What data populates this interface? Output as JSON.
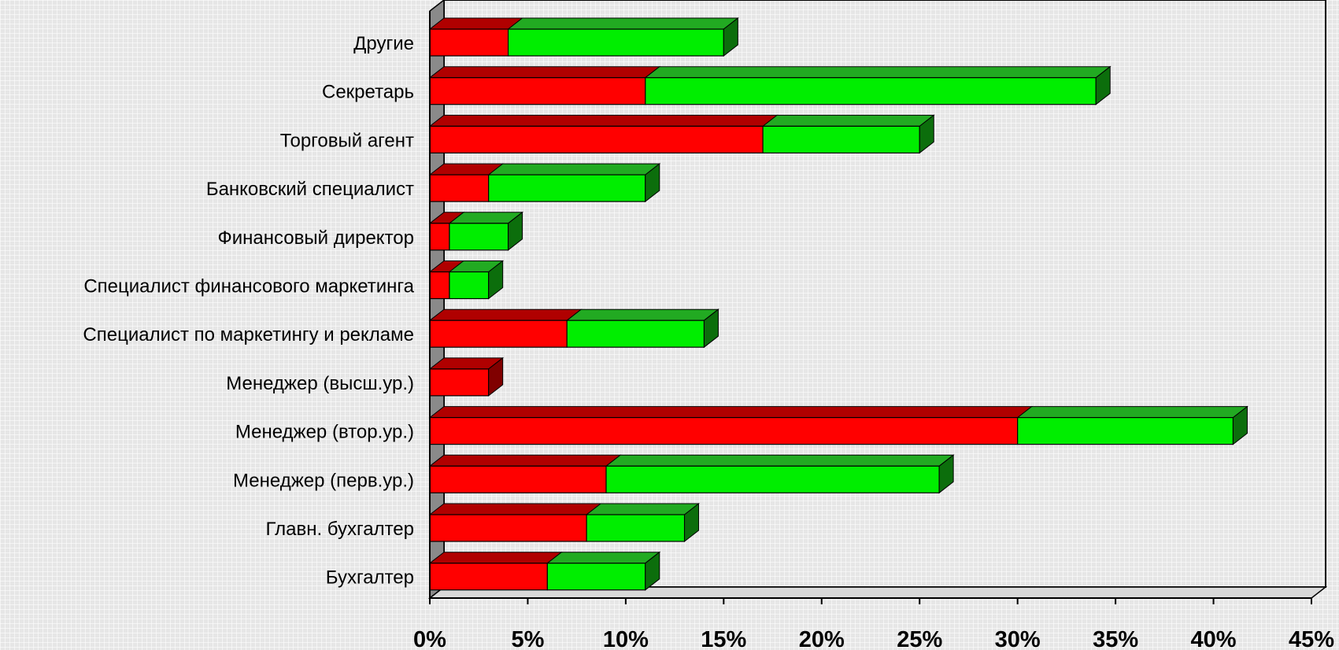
{
  "chart_data": {
    "type": "bar",
    "stacked": true,
    "orientation": "horizontal",
    "three_d": true,
    "categories": [
      "Другие",
      "Секретарь",
      "Торговый агент",
      "Банковский специалист",
      "Финансовый директор",
      "Специалист финансового маркетинга",
      "Специалист по маркетингу и рекламе",
      "Менеджер (высш.ур.)",
      "Менеджер (втор.ур.)",
      "Менеджер (перв.ур.)",
      "Главн. бухгалтер",
      "Бухгалтер"
    ],
    "series": [
      {
        "values": [
          4,
          11,
          17,
          3,
          1,
          1,
          7,
          3,
          30,
          9,
          8,
          6
        ],
        "color": "#ff0000"
      },
      {
        "values": [
          11,
          23,
          8,
          8,
          3,
          2,
          7,
          0,
          11,
          17,
          5,
          5
        ],
        "color": "#00ee00"
      }
    ],
    "xlim": [
      0,
      45
    ],
    "x_ticks": [
      "0%",
      "5%",
      "10%",
      "15%",
      "20%",
      "25%",
      "30%",
      "35%",
      "40%",
      "45%"
    ],
    "grid": false,
    "legend": "none"
  }
}
